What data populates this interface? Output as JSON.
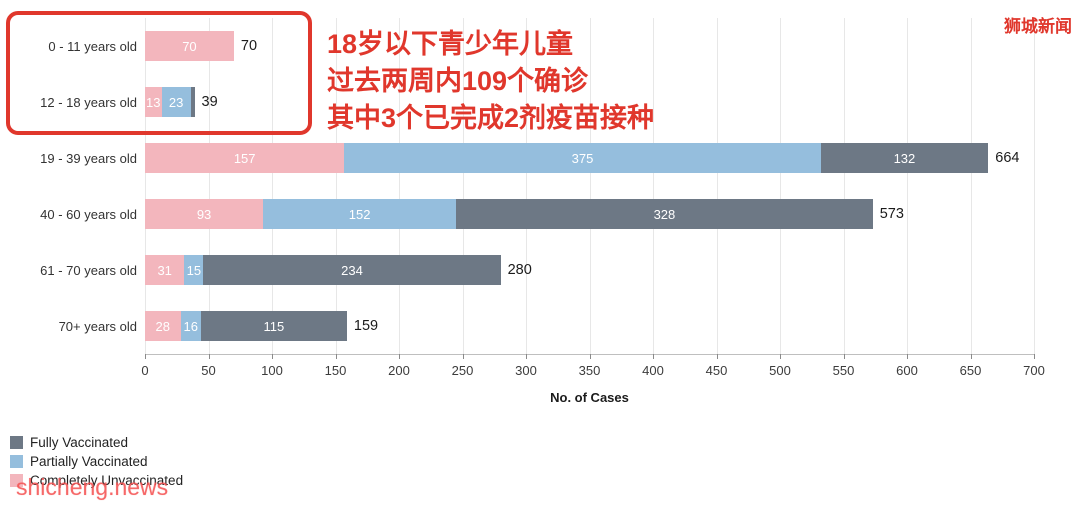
{
  "header": {
    "site_badge": "狮城新闻"
  },
  "annotation": {
    "color": "#e0372c",
    "lines": [
      "18岁以下青少年儿童",
      "过去两周内109个确诊",
      "其中3个已完成2剂疫苗接种"
    ]
  },
  "watermark": "shicheng.news",
  "chart_data": {
    "type": "bar",
    "orientation": "horizontal",
    "stacked": true,
    "title": "",
    "xlabel": "No. of Cases",
    "ylabel": "",
    "xlim": [
      0,
      700
    ],
    "xticks": [
      0,
      50,
      100,
      150,
      200,
      250,
      300,
      350,
      400,
      450,
      500,
      550,
      600,
      650,
      700
    ],
    "grid": true,
    "legend_position": "bottom-left",
    "categories": [
      "0 - 11 years old",
      "12 - 18 years old",
      "19 - 39 years old",
      "40 - 60 years old",
      "61 - 70 years old",
      "70+ years old"
    ],
    "series": [
      {
        "name": "Fully Vaccinated",
        "color": "#6d7885",
        "values": [
          0,
          3,
          132,
          328,
          234,
          115
        ]
      },
      {
        "name": "Partially Vaccinated",
        "color": "#95bedd",
        "values": [
          0,
          23,
          375,
          152,
          15,
          16
        ]
      },
      {
        "name": "Completely Unvaccinated",
        "color": "#f3b6bd",
        "values": [
          70,
          13,
          157,
          93,
          31,
          28
        ]
      }
    ],
    "stack_order_note": "drawn left-to-right: Completely Unvaccinated, Partially Vaccinated, Fully Vaccinated",
    "totals": [
      70,
      39,
      664,
      573,
      280,
      159
    ]
  }
}
